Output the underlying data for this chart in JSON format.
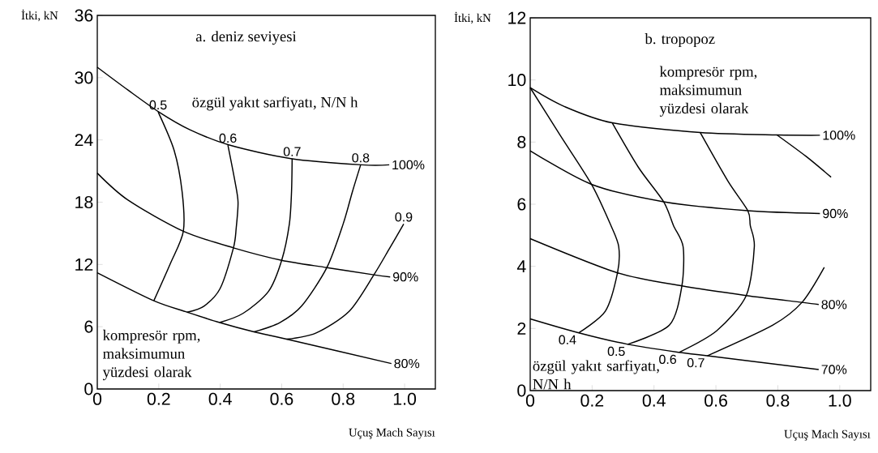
{
  "chart_data": [
    {
      "type": "line",
      "title": "a. deniz seviyesi",
      "xlabel": "Uçuş Mach Sayısı",
      "ylabel": "İtki, kN",
      "annotations": [
        "özgül yakıt sarfiyatı, N/N h",
        "kompresör rpm, maksimumun yüzdesi olarak"
      ],
      "xlim": [
        0,
        1.1
      ],
      "ylim": [
        0,
        36
      ],
      "xticks": [
        0,
        0.2,
        0.4,
        0.6,
        0.8,
        {
          "value": 1,
          "label": "1.0"
        }
      ],
      "yticks": [
        0,
        6,
        12,
        18,
        24,
        30,
        36
      ],
      "series": [
        {
          "name": "100%",
          "color": "#000000",
          "x": [
            0.95,
            0.86,
            0.63,
            0.43,
            0.3,
            0.2,
            0.1,
            0
          ],
          "values": [
            21.6,
            21.6,
            22.2,
            23.5,
            25,
            26.7,
            28.8,
            31
          ]
        },
        {
          "name": "90%",
          "color": "#000000",
          "x": [
            0.953,
            0.9,
            0.747,
            0.6,
            0.443,
            0.28,
            0.1,
            0
          ],
          "values": [
            10.8,
            11.0,
            11.7,
            12.4,
            13.6,
            15.2,
            18.2,
            20.8
          ]
        },
        {
          "name": "80%",
          "color": "#000000",
          "x": [
            0.957,
            0.616,
            0.51,
            0.398,
            0.293,
            0.184,
            0
          ],
          "values": [
            2.45,
            4.8,
            5.5,
            6.4,
            7.4,
            8.5,
            11.2
          ]
        },
        {
          "name": "0.5",
          "color": "#000000",
          "x": [
            0.198,
            0.25,
            0.276,
            0.28,
            0.238,
            0.184
          ],
          "values": [
            26.7,
            23,
            19,
            15.2,
            12.1,
            8.5
          ]
        },
        {
          "name": "0.6",
          "color": "#000000",
          "x": [
            0.425,
            0.448,
            0.458,
            0.452,
            0.443,
            0.4,
            0.348,
            0.293
          ],
          "values": [
            23.5,
            20,
            18,
            15.5,
            13.6,
            9.7,
            8.0,
            7.4
          ]
        },
        {
          "name": "0.7",
          "color": "#000000",
          "x": [
            0.634,
            0.632,
            0.625,
            0.6,
            0.557,
            0.475,
            0.398
          ],
          "values": [
            22.2,
            19,
            15.9,
            12.4,
            9.4,
            7.3,
            6.4
          ]
        },
        {
          "name": "0.8",
          "color": "#000000",
          "x": [
            0.857,
            0.83,
            0.8,
            0.747,
            0.665,
            0.594,
            0.51
          ],
          "values": [
            21.6,
            19,
            15.9,
            11.7,
            8.0,
            6.4,
            5.5
          ]
        },
        {
          "name": "0.9",
          "color": "#000000",
          "x": [
            0.997,
            0.95,
            0.9,
            0.82,
            0.712,
            0.616
          ],
          "values": [
            15.9,
            13.5,
            11.0,
            7.5,
            5.4,
            4.8
          ]
        }
      ]
    },
    {
      "type": "line",
      "title": "b. tropopoz",
      "xlabel": "Uçuş Mach Sayısı",
      "ylabel": "İtki, kN",
      "annotations": [
        "kompresör rpm, maksimumun yüzdesi olarak",
        "özgül yakıt sarfiyatı, N/N h"
      ],
      "xlim": [
        0,
        1.1
      ],
      "ylim": [
        0,
        12
      ],
      "xticks": [
        0,
        0.2,
        0.4,
        0.6,
        0.8,
        {
          "value": 1,
          "label": "1.0"
        }
      ],
      "yticks": [
        0,
        2,
        4,
        6,
        8,
        10,
        12
      ],
      "series": [
        {
          "name": "100%",
          "color": "#000000",
          "x": [
            0.936,
            0.797,
            0.549,
            0.265,
            0.107,
            0
          ],
          "values": [
            8.22,
            8.23,
            8.31,
            8.62,
            9.16,
            9.75
          ]
        },
        {
          "name": "90%",
          "color": "#000000",
          "x": [
            0.936,
            0.703,
            0.431,
            0.198,
            0
          ],
          "values": [
            5.7,
            5.79,
            6.08,
            6.64,
            7.72
          ]
        },
        {
          "name": "80%",
          "color": "#000000",
          "x": [
            0.932,
            0.878,
            0.698,
            0.49,
            0.282,
            0
          ],
          "values": [
            2.77,
            2.84,
            3.06,
            3.37,
            3.79,
            4.89
          ]
        },
        {
          "name": "70%",
          "color": "#000000",
          "x": [
            0.932,
            0.572,
            0.481,
            0.315,
            0.157,
            0
          ],
          "values": [
            0.68,
            1.12,
            1.23,
            1.49,
            1.86,
            2.31
          ]
        },
        {
          "name": "0.4",
          "color": "#000000",
          "x": [
            0.157,
            0.243,
            0.282,
            0.286,
            0.261,
            0.198,
            0.098,
            0
          ],
          "values": [
            1.86,
            2.56,
            3.79,
            4.63,
            5.31,
            6.64,
            8.2,
            9.75
          ]
        },
        {
          "name": "0.5",
          "color": "#000000",
          "x": [
            0.315,
            0.45,
            0.49,
            0.494,
            0.463,
            0.431,
            0.35,
            0.265
          ],
          "values": [
            1.49,
            2.11,
            3.37,
            4.63,
            5.31,
            6.08,
            7.18,
            8.62
          ]
        },
        {
          "name": "0.6",
          "color": "#000000",
          "x": [
            0.481,
            0.603,
            0.698,
            0.724,
            0.711,
            0.703,
            0.639,
            0.549
          ],
          "values": [
            1.23,
            1.93,
            3.06,
            4.63,
            5.31,
            5.79,
            6.74,
            8.31
          ]
        },
        {
          "name": "0.7",
          "color": "#000000",
          "x": [
            0.572,
            0.784,
            0.878,
            0.95
          ],
          "values": [
            1.12,
            2.11,
            2.84,
            3.97
          ]
        },
        {
          "color": "#000000",
          "x": [
            0.797,
            0.891,
            0.972
          ],
          "values": [
            8.23,
            7.54,
            6.87
          ]
        }
      ]
    }
  ]
}
